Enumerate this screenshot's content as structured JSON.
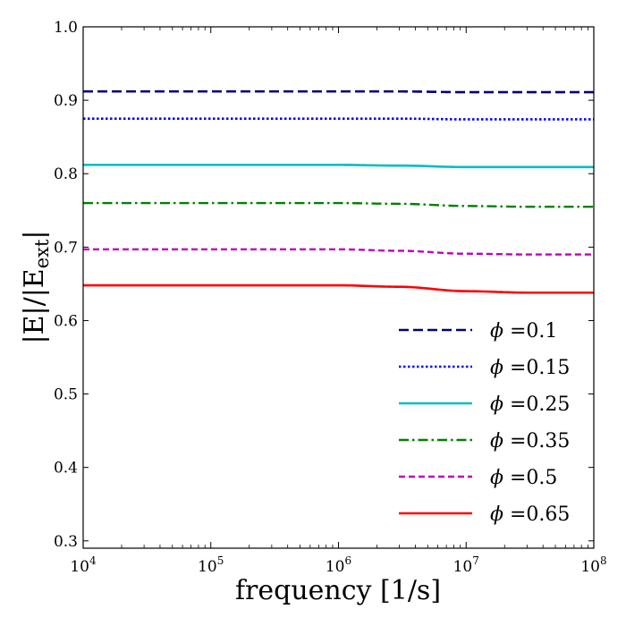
{
  "chart_data": {
    "type": "line",
    "title": "",
    "xlabel": "frequency [1/s]",
    "ylabel": {
      "prefix": "|E|/|E",
      "subscript": "ext",
      "suffix": "|"
    },
    "xscale": "log",
    "xlim": [
      10000,
      100000000
    ],
    "ylim": [
      0.29,
      1.0
    ],
    "x_ticks": [
      {
        "value": 10000,
        "base": "10",
        "exp": "4"
      },
      {
        "value": 100000,
        "base": "10",
        "exp": "5"
      },
      {
        "value": 1000000,
        "base": "10",
        "exp": "6"
      },
      {
        "value": 10000000,
        "base": "10",
        "exp": "7"
      },
      {
        "value": 100000000,
        "base": "10",
        "exp": "8"
      }
    ],
    "y_ticks": [
      {
        "value": 0.3,
        "label": "0.3"
      },
      {
        "value": 0.4,
        "label": "0.4"
      },
      {
        "value": 0.5,
        "label": "0.5"
      },
      {
        "value": 0.6,
        "label": "0.6"
      },
      {
        "value": 0.7,
        "label": "0.7"
      },
      {
        "value": 0.8,
        "label": "0.8"
      },
      {
        "value": 0.9,
        "label": "0.9"
      },
      {
        "value": 1.0,
        "label": "1.0"
      }
    ],
    "legend_position": "lower-right",
    "legend_symbol": "ϕ",
    "x": [
      10000,
      100000,
      1000000,
      3000000,
      10000000,
      30000000,
      100000000
    ],
    "series": [
      {
        "name": "ϕ =0.1",
        "label_value": "0.1",
        "color": "#000080",
        "dash": "dashed",
        "values": [
          0.912,
          0.912,
          0.912,
          0.912,
          0.911,
          0.911,
          0.911
        ]
      },
      {
        "name": "ϕ =0.15",
        "label_value": "0.15",
        "color": "#0000ff",
        "dash": "dotted",
        "values": [
          0.875,
          0.875,
          0.875,
          0.875,
          0.874,
          0.874,
          0.874
        ]
      },
      {
        "name": "ϕ =0.25",
        "label_value": "0.25",
        "color": "#00bfbf",
        "dash": "solid",
        "values": [
          0.812,
          0.812,
          0.812,
          0.811,
          0.809,
          0.809,
          0.809
        ]
      },
      {
        "name": "ϕ =0.35",
        "label_value": "0.35",
        "color": "#008000",
        "dash": "dashdot",
        "values": [
          0.76,
          0.76,
          0.76,
          0.759,
          0.756,
          0.755,
          0.755
        ]
      },
      {
        "name": "ϕ =0.5",
        "label_value": "0.5",
        "color": "#bf00bf",
        "dash": "dashed2",
        "values": [
          0.697,
          0.697,
          0.697,
          0.695,
          0.691,
          0.69,
          0.69
        ]
      },
      {
        "name": "ϕ =0.65",
        "label_value": "0.65",
        "color": "#ff0000",
        "dash": "solid",
        "values": [
          0.648,
          0.648,
          0.648,
          0.646,
          0.64,
          0.638,
          0.638
        ]
      }
    ]
  }
}
